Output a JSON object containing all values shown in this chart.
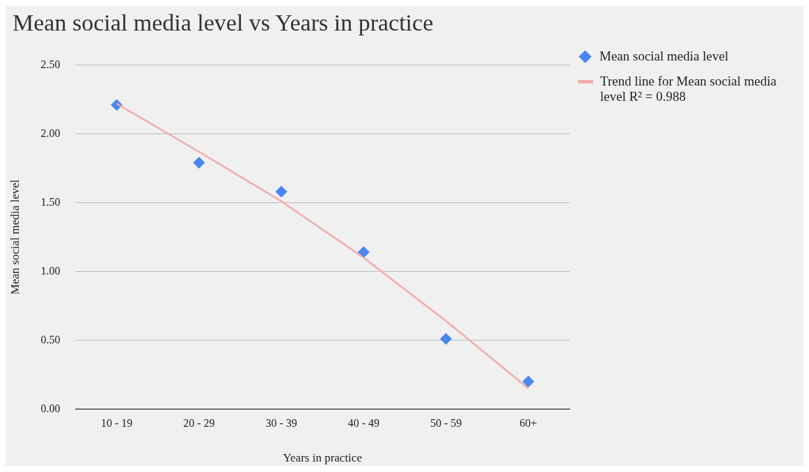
{
  "chart_data": {
    "type": "scatter",
    "title": "Mean social media level vs Years in practice",
    "xlabel": "Years in practice",
    "ylabel": "Mean social media level",
    "categories": [
      "10 - 19",
      "20 - 29",
      "30 - 39",
      "40 - 49",
      "50 - 59",
      "60+"
    ],
    "series": [
      {
        "name": "Mean social media level",
        "marker": "diamond",
        "color": "#4a86f0",
        "values": [
          2.21,
          1.79,
          1.58,
          1.14,
          0.51,
          0.2
        ]
      },
      {
        "name": "Trend line for Mean social media level R² = 0.988",
        "type": "line",
        "marker": "none",
        "color": "#f2aaaa",
        "values": [
          2.22,
          1.87,
          1.51,
          1.1,
          0.64,
          0.15
        ]
      }
    ],
    "ylim": [
      0,
      2.5
    ],
    "yticks": [
      {
        "value": 0,
        "label": "0.00"
      },
      {
        "value": 0.5,
        "label": "0.50"
      },
      {
        "value": 1,
        "label": "1.00"
      },
      {
        "value": 1.5,
        "label": "1.50"
      },
      {
        "value": 2,
        "label": "2.00"
      },
      {
        "value": 2.5,
        "label": "2.50"
      }
    ],
    "grid": "y",
    "legend": "top right"
  }
}
